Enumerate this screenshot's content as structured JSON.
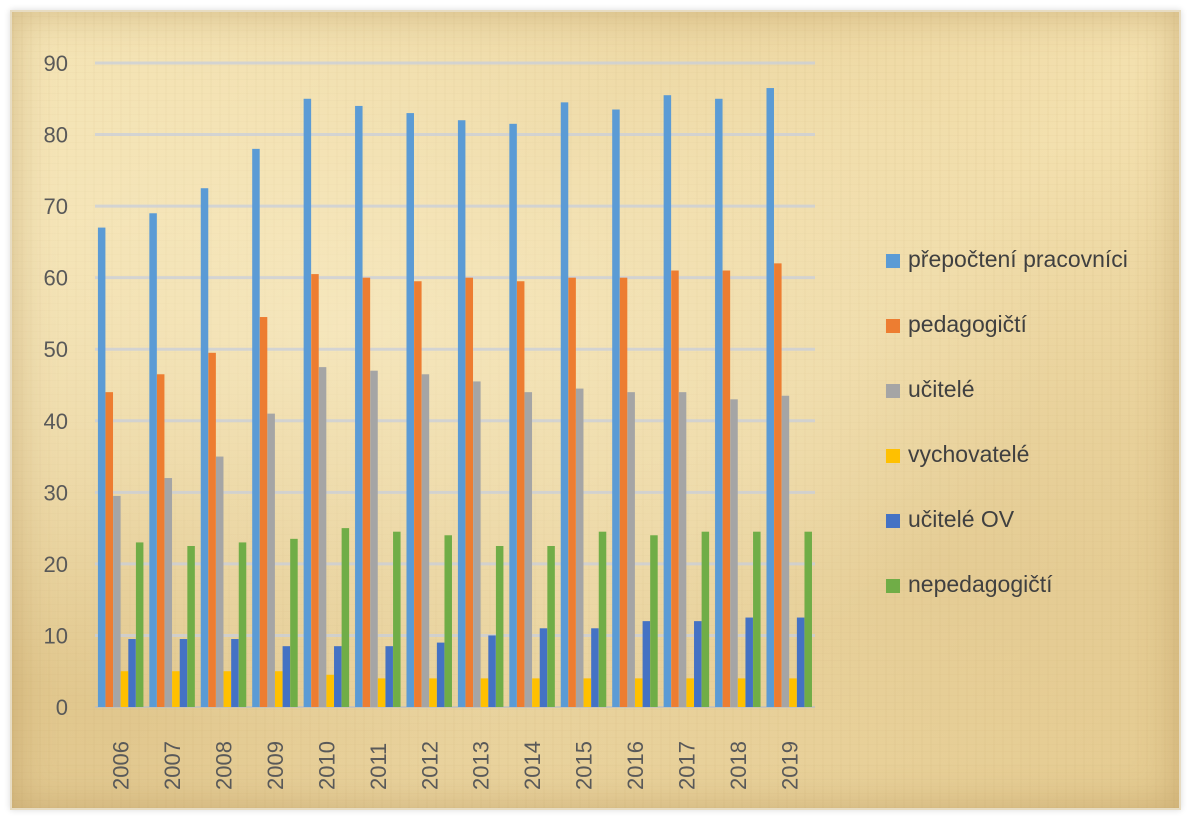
{
  "chart_data": {
    "type": "bar",
    "title": "",
    "xlabel": "",
    "ylabel": "",
    "ylim": [
      0,
      90
    ],
    "yticks": [
      0,
      10,
      20,
      30,
      40,
      50,
      60,
      70,
      80,
      90
    ],
    "categories": [
      "2006",
      "2007",
      "2008",
      "2009",
      "2010",
      "2011",
      "2012",
      "2013",
      "2014",
      "2015",
      "2016",
      "2017",
      "2018",
      "2019"
    ],
    "grid": true,
    "legend_position": "right",
    "series": [
      {
        "name": "přepočtení pracovníci",
        "color": "#5b9bd5",
        "values": [
          67,
          69,
          72.5,
          78,
          85,
          84,
          83,
          82,
          81.5,
          84.5,
          83.5,
          85.5,
          85,
          86.5
        ]
      },
      {
        "name": "pedagogičtí",
        "color": "#ed7d31",
        "values": [
          44,
          46.5,
          49.5,
          54.5,
          60.5,
          60,
          59.5,
          60,
          59.5,
          60,
          60,
          61,
          61,
          62
        ]
      },
      {
        "name": "učitelé",
        "color": "#a5a5a5",
        "values": [
          29.5,
          32,
          35,
          41,
          47.5,
          47,
          46.5,
          45.5,
          44,
          44.5,
          44,
          44,
          43,
          43.5
        ]
      },
      {
        "name": "vychovatelé",
        "color": "#ffc000",
        "values": [
          5,
          5,
          5,
          5,
          4.5,
          4,
          4,
          4,
          4,
          4,
          4,
          4,
          4,
          4
        ]
      },
      {
        "name": "učitelé OV",
        "color": "#4472c4",
        "values": [
          9.5,
          9.5,
          9.5,
          8.5,
          8.5,
          8.5,
          9,
          10,
          11,
          11,
          12,
          12,
          12.5,
          12.5
        ]
      },
      {
        "name": "nepedagogičtí",
        "color": "#70ad47",
        "values": [
          23,
          22.5,
          23,
          23.5,
          25,
          24.5,
          24,
          22.5,
          22.5,
          24.5,
          24,
          24.5,
          24.5,
          24.5
        ]
      }
    ]
  }
}
